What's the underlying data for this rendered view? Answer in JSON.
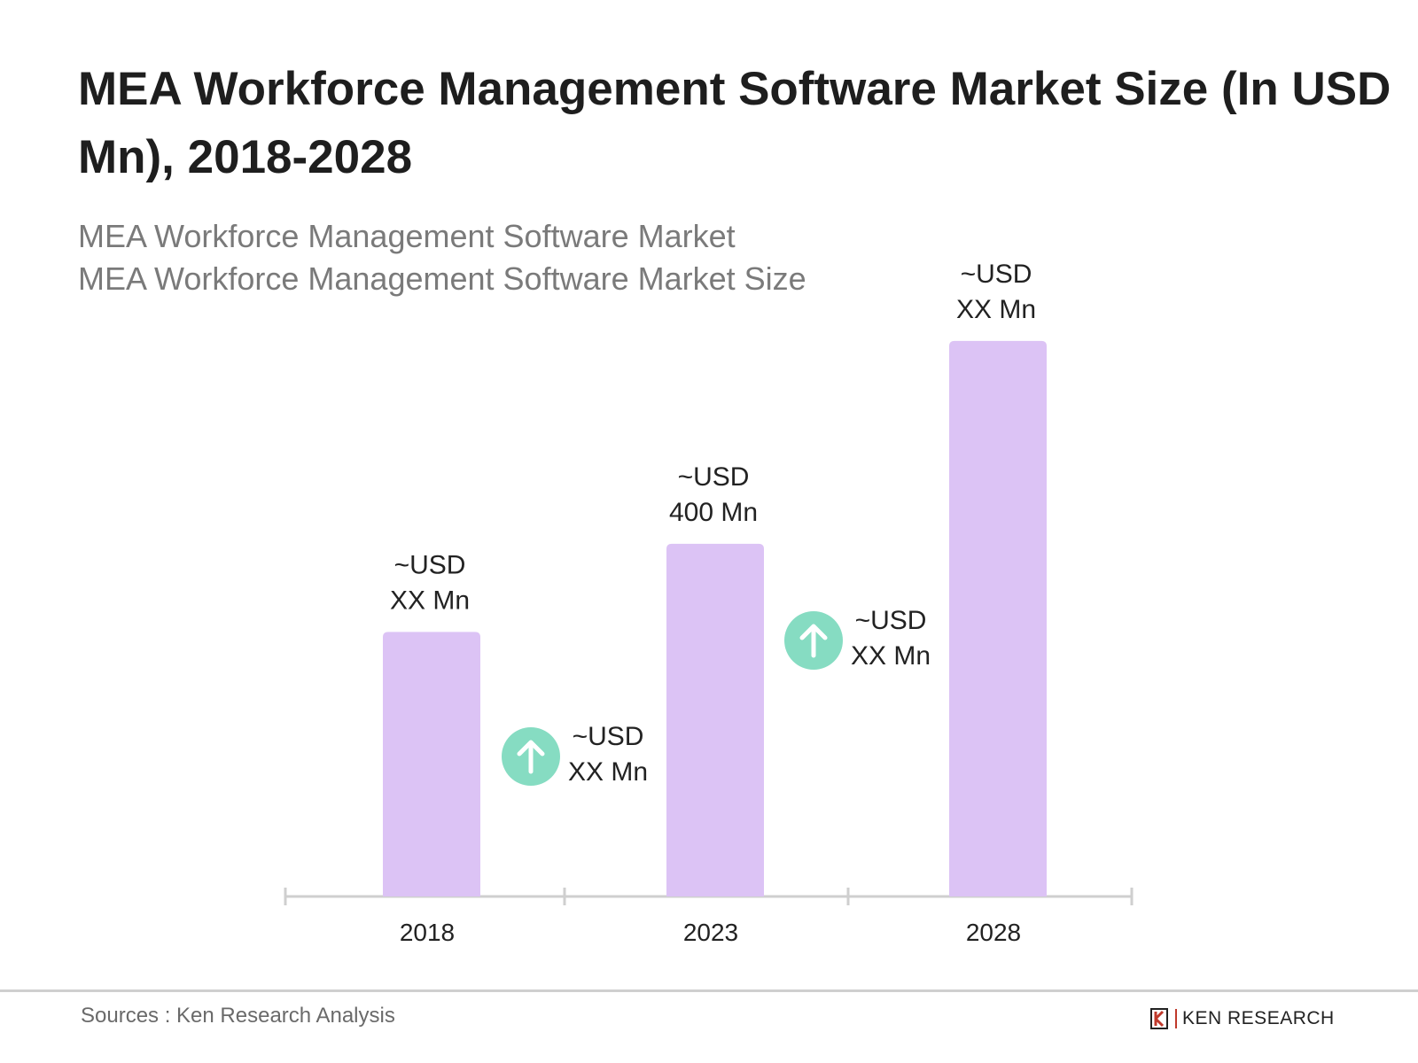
{
  "title": "MEA Workforce Management Software Market Size (In USD Mn), 2018-2028",
  "subtitle_lines": [
    "MEA Workforce Management Software Market",
    "MEA Workforce Management Software Market Size"
  ],
  "source": "Sources : Ken Research Analysis",
  "logo_text": "KEN RESEARCH",
  "colors": {
    "bar": "#dcc3f5",
    "growth_circle": "#86dcc2",
    "axis": "#cfcfcf"
  },
  "chart_data": {
    "type": "bar",
    "categories": [
      "2018",
      "2023",
      "2028"
    ],
    "values": [
      300,
      400,
      630
    ],
    "value_labels": [
      {
        "line1": "~USD",
        "line2": "XX Mn"
      },
      {
        "line1": "~USD",
        "line2": "400 Mn"
      },
      {
        "line1": "~USD",
        "line2": "XX Mn"
      }
    ],
    "growth_annotations": [
      {
        "icon": "arrow-up-icon",
        "line1": "~USD",
        "line2": "XX Mn"
      },
      {
        "icon": "arrow-up-icon",
        "line1": "~USD",
        "line2": "XX Mn"
      }
    ],
    "ylim": [
      0,
      650
    ],
    "grid": false,
    "xlabel": "",
    "ylabel": ""
  }
}
